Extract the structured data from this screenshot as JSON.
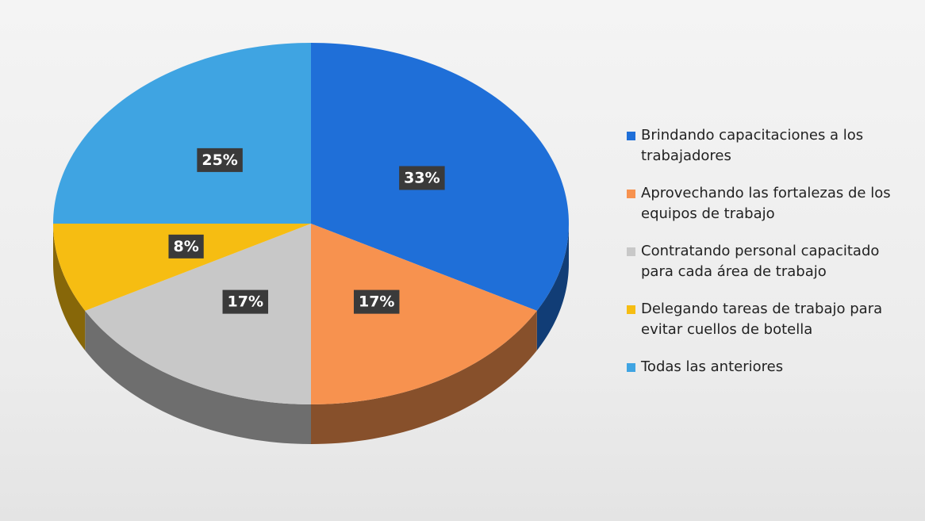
{
  "chart_data": {
    "type": "pie",
    "categories": [
      "Brindando capacitaciones a los trabajadores",
      "Aprovechando las fortalezas de los equipos de trabajo",
      "Contratando personal capacitado para cada área de trabajo",
      "Delegando tareas de trabajo para evitar cuellos de botella",
      "Todas las anteriores"
    ],
    "values": [
      33,
      17,
      17,
      8,
      25
    ],
    "value_labels": [
      "33%",
      "17%",
      "17%",
      "8%",
      "25%"
    ],
    "colors": [
      "#1f6fd8",
      "#f7924f",
      "#c8c8c8",
      "#f6bd12",
      "#3fa4e2"
    ],
    "legend": "right"
  }
}
